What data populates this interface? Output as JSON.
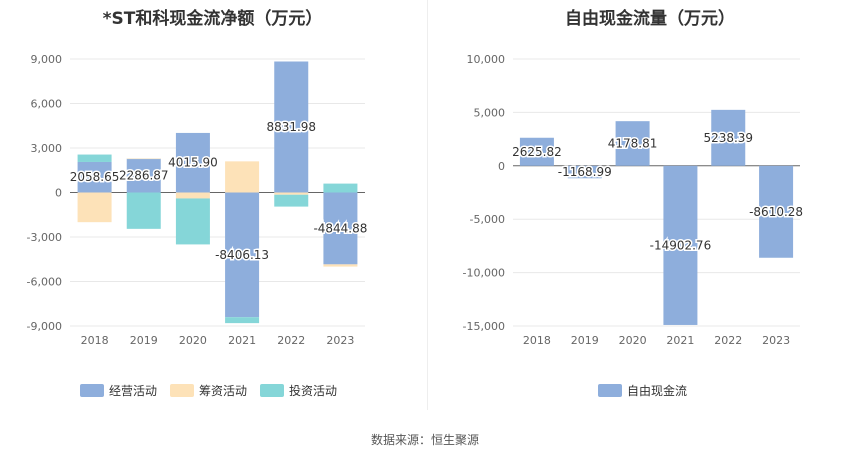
{
  "source_text": "数据来源：恒生聚源",
  "chart_data": [
    {
      "type": "bar",
      "stacked": true,
      "title": "*ST和科现金流净额（万元）",
      "categories": [
        "2018",
        "2019",
        "2020",
        "2021",
        "2022",
        "2023"
      ],
      "ylim": [
        -9000,
        9000
      ],
      "yticks": [
        9000,
        6000,
        3000,
        0,
        -3000,
        -6000,
        -9000
      ],
      "ytick_labels": [
        "9,000",
        "6,000",
        "3,000",
        "0",
        "-3,000",
        "-6,000",
        "-9,000"
      ],
      "grid": true,
      "legend": "bottom",
      "series": [
        {
          "name": "经营活动",
          "color": "#8eaedc",
          "values": [
            2058.65,
            2286.87,
            4015.9,
            -8406.13,
            8831.98,
            -4844.88
          ],
          "labels": [
            "2058.65",
            "2286.87",
            "4015.90",
            "-8406.13",
            "8831.98",
            "-4844.88"
          ]
        },
        {
          "name": "筹资活动",
          "color": "#fde2b8",
          "values": [
            -2000,
            0,
            -400,
            2100,
            -150,
            -150
          ]
        },
        {
          "name": "投资活动",
          "color": "#85d6d8",
          "values": [
            500,
            -2450,
            -3100,
            -400,
            -800,
            600
          ]
        }
      ]
    },
    {
      "type": "bar",
      "title": "自由现金流量（万元）",
      "categories": [
        "2018",
        "2019",
        "2020",
        "2021",
        "2022",
        "2023"
      ],
      "ylim": [
        -15000,
        10000
      ],
      "yticks": [
        10000,
        5000,
        0,
        -5000,
        -10000,
        -15000
      ],
      "ytick_labels": [
        "10,000",
        "5,000",
        "0",
        "-5,000",
        "-10,000",
        "-15,000"
      ],
      "grid": true,
      "legend": "bottom",
      "series": [
        {
          "name": "自由现金流",
          "color": "#8eaedc",
          "values": [
            2625.82,
            -1168.99,
            4178.81,
            -14902.76,
            5238.39,
            -8610.28
          ],
          "labels": [
            "2625.82",
            "-1168.99",
            "4178.81",
            "-14902.76",
            "5238.39",
            "-8610.28"
          ]
        }
      ]
    }
  ]
}
